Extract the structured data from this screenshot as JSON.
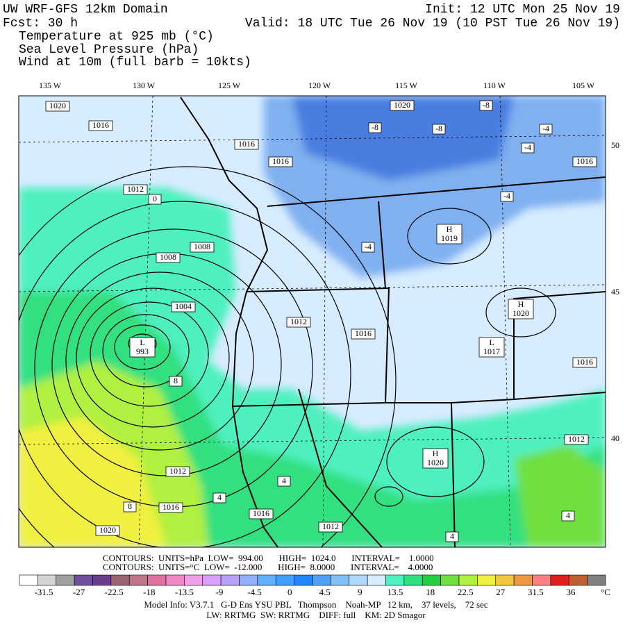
{
  "header": {
    "title": "UW WRF-GFS 12km Domain",
    "forecast": "Fcst:   30 h",
    "init": "Init: 12 UTC Mon 25 Nov 19",
    "valid": "Valid: 18 UTC Tue 26 Nov 19 (10 PST Tue 26 Nov 19)",
    "fields": [
      "Temperature at 925 mb (°C)",
      "Sea Level Pressure (hPa)",
      "Wind at 10m (full barb = 10kts)"
    ]
  },
  "map": {
    "longitude_labels": [
      "135 W",
      "130 W",
      "125 W",
      "120 W",
      "115 W",
      "110 W",
      "105 W"
    ],
    "latitude_labels": [
      "50",
      "45",
      "40"
    ],
    "pressure_labels": [
      "1020",
      "1016",
      "1016",
      "1016",
      "1012",
      "1008",
      "1008",
      "1004",
      "1012",
      "1016",
      "1012",
      "1016",
      "1016",
      "1020",
      "1012",
      "1020",
      "1016",
      "1016",
      "1012"
    ],
    "centers": [
      {
        "letter": "L",
        "value": "993"
      },
      {
        "letter": "H",
        "value": "1019"
      },
      {
        "letter": "H",
        "value": "1020"
      },
      {
        "letter": "L",
        "value": "1017"
      },
      {
        "letter": "H",
        "value": "1020"
      }
    ],
    "temperature_labels": [
      "-8",
      "-8",
      "-8",
      "-4",
      "-4",
      "-4",
      "-4",
      "0",
      "8",
      "4",
      "4",
      "8",
      "4",
      "4"
    ]
  },
  "footer": {
    "contours": [
      "CONTOURS:  UNITS=hPa  LOW=  994.00       HIGH=  1024.0       INTERVAL=    1.0000",
      "CONTOURS:  UNITS=°C  LOW=  -12.000       HIGH=  8.0000       INTERVAL=    4.0000"
    ],
    "colorbar": {
      "colors": [
        "#ffffff",
        "#d4d4d4",
        "#a0a0a0",
        "#70509a",
        "#6a3c8c",
        "#9c6470",
        "#c07488",
        "#e070a0",
        "#f088c8",
        "#f0a0e8",
        "#d8a0f8",
        "#b8a0f8",
        "#90b0ff",
        "#60b0ff",
        "#40a0ff",
        "#2088ff",
        "#50a0f8",
        "#80c0f8",
        "#b0d8ff",
        "#d8ecff",
        "#50f0c0",
        "#30e080",
        "#20d040",
        "#70e040",
        "#b0f040",
        "#f0f040",
        "#f0c840",
        "#f09840",
        "#ff8080",
        "#e02020",
        "#c06030",
        "#808080"
      ],
      "labels": [
        "-31.5",
        "-27",
        "-22.5",
        "-18",
        "-13.5",
        "-9",
        "-4.5",
        "0",
        "4.5",
        "9",
        "13.5",
        "18",
        "22.5",
        "27",
        "31.5",
        "36"
      ],
      "unit": "°C"
    },
    "model_info": [
      "Model Info: V3.7.1   G-D Ens YSU PBL   Thompson    Noah-MP   12 km,    37 levels,    72 sec",
      "LW: RRTMG  SW: RRTMG    DIFF: full    KM: 2D Smagor"
    ]
  }
}
